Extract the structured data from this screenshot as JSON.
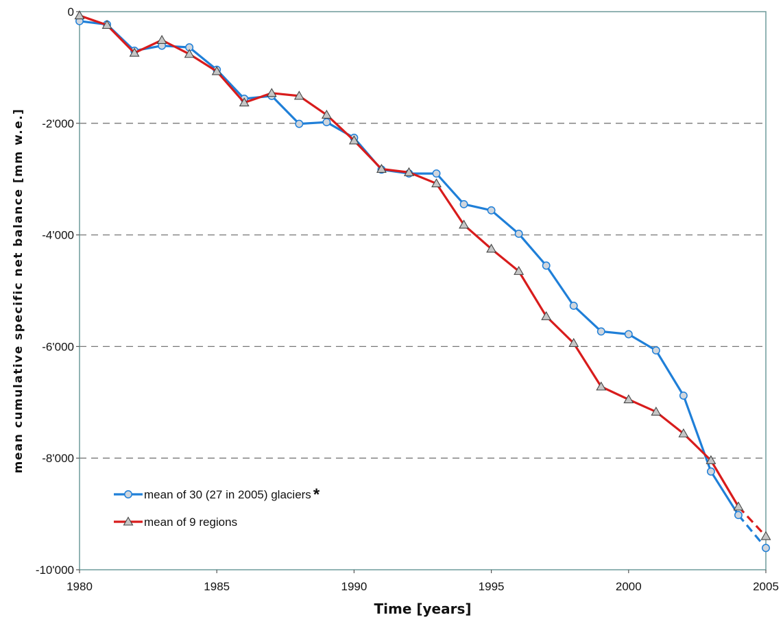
{
  "chart_data": {
    "type": "line",
    "xlabel": "Time [years]",
    "ylabel": "mean cumulative specific net balance [mm w.e.]",
    "xlim": [
      1980,
      2005
    ],
    "ylim": [
      -10000,
      0
    ],
    "x_ticks": [
      1980,
      1985,
      1990,
      1995,
      2000,
      2005
    ],
    "x_tick_labels": [
      "1980",
      "1985",
      "1990",
      "1995",
      "2000",
      "2005"
    ],
    "y_ticks": [
      0,
      -2000,
      -4000,
      -6000,
      -8000,
      -10000
    ],
    "y_tick_labels": [
      "0",
      "-2'000",
      "-4'000",
      "-6'000",
      "-8'000",
      "-10'000"
    ],
    "grid": "horizontal dashed",
    "legend_position": "bottom-left",
    "x": [
      1980,
      1981,
      1982,
      1983,
      1984,
      1985,
      1986,
      1987,
      1988,
      1989,
      1990,
      1991,
      1992,
      1993,
      1994,
      1995,
      1996,
      1997,
      1998,
      1999,
      2000,
      2001,
      2002,
      2003,
      2004,
      2005
    ],
    "series": [
      {
        "name": "mean of 30 (27 in 2005) glaciers",
        "legend_suffix": "*",
        "color": "#1f7fd8",
        "marker": "circle",
        "dashed_last_segment": true,
        "values": [
          -170,
          -230,
          -700,
          -610,
          -640,
          -1040,
          -1560,
          -1510,
          -2010,
          -1980,
          -2260,
          -2830,
          -2900,
          -2900,
          -3450,
          -3560,
          -3980,
          -4550,
          -5270,
          -5730,
          -5780,
          -6070,
          -6880,
          -8240,
          -9020,
          -9610
        ]
      },
      {
        "name": "mean of 9 regions",
        "legend_suffix": "",
        "color": "#d81c1c",
        "marker": "triangle",
        "dashed_last_segment": true,
        "values": [
          -70,
          -240,
          -740,
          -510,
          -760,
          -1070,
          -1630,
          -1460,
          -1510,
          -1850,
          -2310,
          -2820,
          -2880,
          -3080,
          -3820,
          -4250,
          -4650,
          -5460,
          -5940,
          -6720,
          -6950,
          -7170,
          -7560,
          -8040,
          -8870,
          -9400
        ]
      }
    ]
  }
}
